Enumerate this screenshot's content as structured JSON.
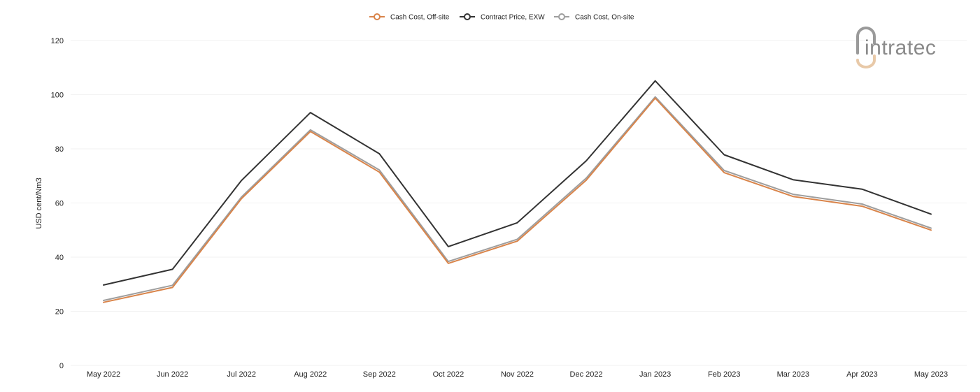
{
  "chart_data": {
    "type": "line",
    "title": "",
    "xlabel": "",
    "ylabel": "USD cent/Nm3",
    "ylim": [
      0,
      120
    ],
    "yticks": [
      0,
      20,
      40,
      60,
      80,
      100,
      120
    ],
    "grid": "horizontal",
    "legend_position": "top-center",
    "categories": [
      "May 2022",
      "Jun 2022",
      "Jul 2022",
      "Aug 2022",
      "Sep 2022",
      "Oct 2022",
      "Nov 2022",
      "Dec 2022",
      "Jan 2023",
      "Feb 2023",
      "Mar 2023",
      "Apr 2023",
      "May 2023"
    ],
    "series": [
      {
        "name": "Cash Cost, Off-site",
        "color": "#d9844a",
        "values": [
          23.3,
          28.8,
          61.6,
          86.4,
          71.4,
          37.7,
          45.9,
          68.4,
          98.7,
          71.2,
          62.4,
          58.8,
          50.0
        ]
      },
      {
        "name": "Contract Price, EXW",
        "color": "#333333",
        "values": [
          29.7,
          35.5,
          68.3,
          93.4,
          78.2,
          43.9,
          52.7,
          75.6,
          105.1,
          77.8,
          68.6,
          65.1,
          55.9
        ]
      },
      {
        "name": "Cash Cost, On-site",
        "color": "#9e9e9e",
        "values": [
          24.0,
          29.6,
          62.2,
          87.0,
          72.2,
          38.4,
          46.6,
          69.2,
          99.2,
          72.0,
          63.2,
          59.6,
          50.7
        ]
      }
    ]
  },
  "logo": {
    "text": "intratec",
    "icon": "intratec-logo-icon",
    "accent_color": "#e8c9a8"
  }
}
